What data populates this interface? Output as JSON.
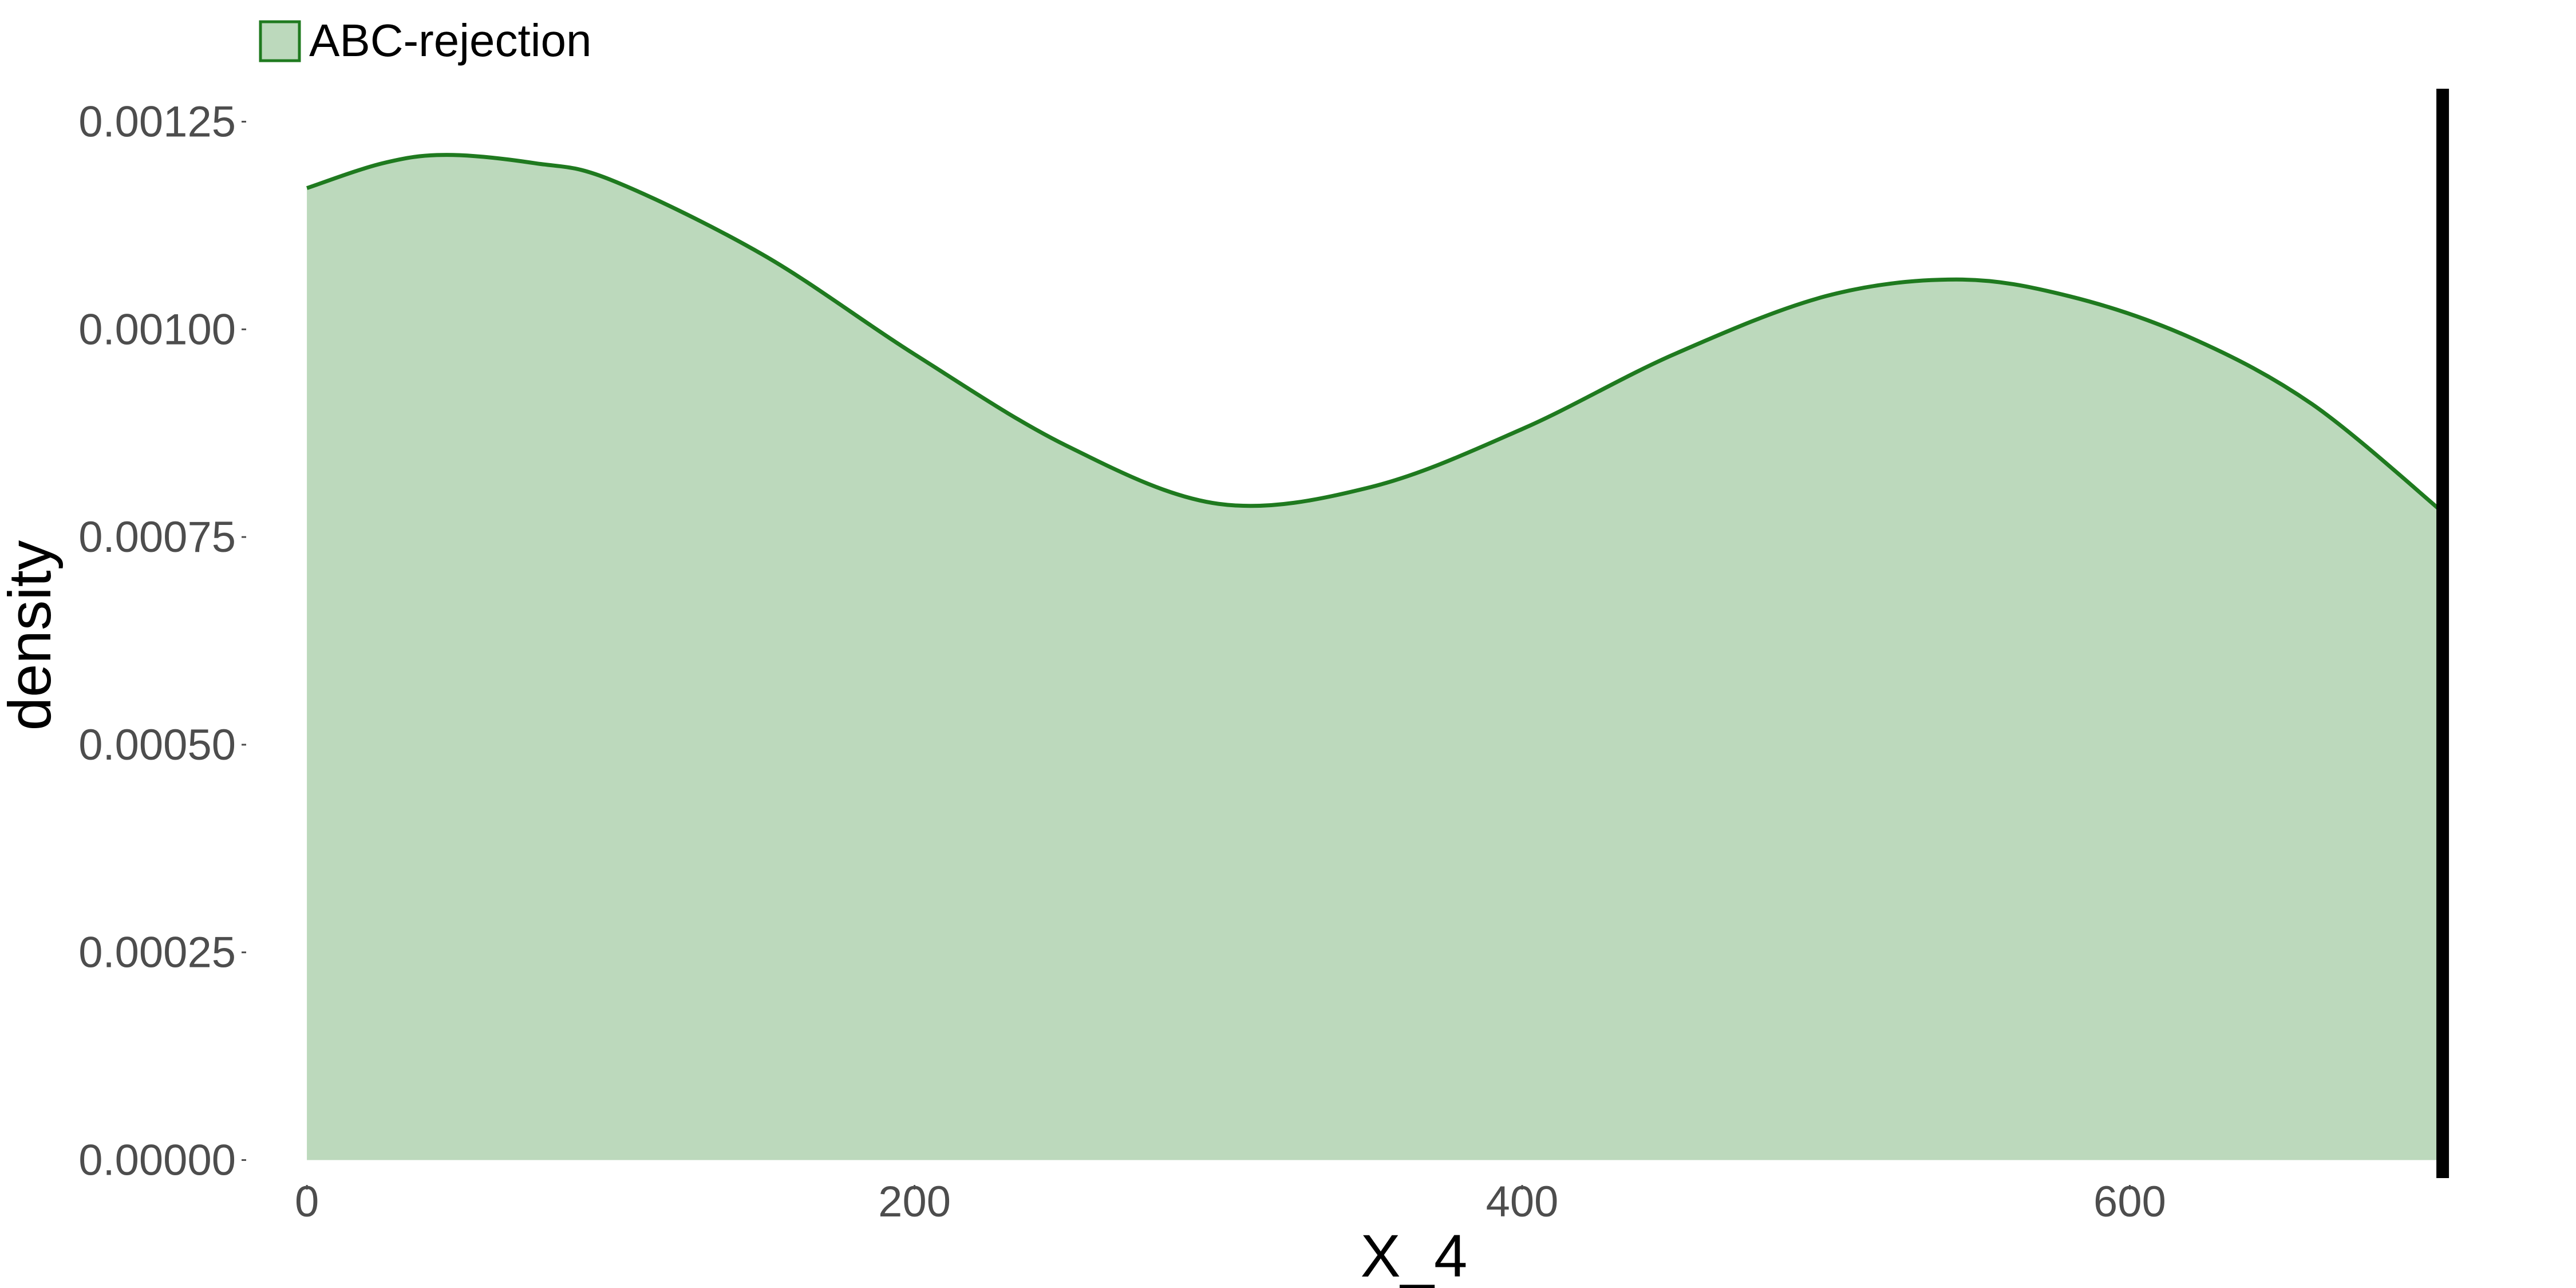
{
  "chart_data": {
    "type": "area",
    "xlabel": "X_4",
    "ylabel": "density",
    "xlim": [
      -20,
      745
    ],
    "ylim": [
      -3e-05,
      0.0013
    ],
    "x_ticks": [
      0,
      200,
      400,
      600
    ],
    "x_tick_labels": [
      "0",
      "200",
      "400",
      "600"
    ],
    "y_ticks": [
      0,
      0.00025,
      0.0005,
      0.00075,
      0.001,
      0.00125
    ],
    "y_tick_labels": [
      "0.00000",
      "0.00025",
      "0.00050",
      "0.00075",
      "0.00100",
      "0.00125"
    ],
    "grid": false,
    "legend": {
      "position": "top-left",
      "entries": [
        "ABC-rejection"
      ]
    },
    "series": [
      {
        "name": "ABC-rejection",
        "line_color": "#1f7a1f",
        "fill_color": "#bcd9bc",
        "x": [
          0,
          25,
          46,
          75,
          100,
          150,
          200,
          250,
          300,
          350,
          400,
          450,
          500,
          543,
          580,
          620,
          660,
          703
        ],
        "y": [
          0.00117,
          0.0012,
          0.00121,
          0.0012,
          0.00118,
          0.00109,
          0.00097,
          0.00086,
          0.00079,
          0.00081,
          0.00088,
          0.00097,
          0.00104,
          0.00106,
          0.00104,
          0.00099,
          0.00091,
          0.00078
        ]
      }
    ],
    "reference_line": {
      "x": 703,
      "color": "#000000"
    }
  }
}
